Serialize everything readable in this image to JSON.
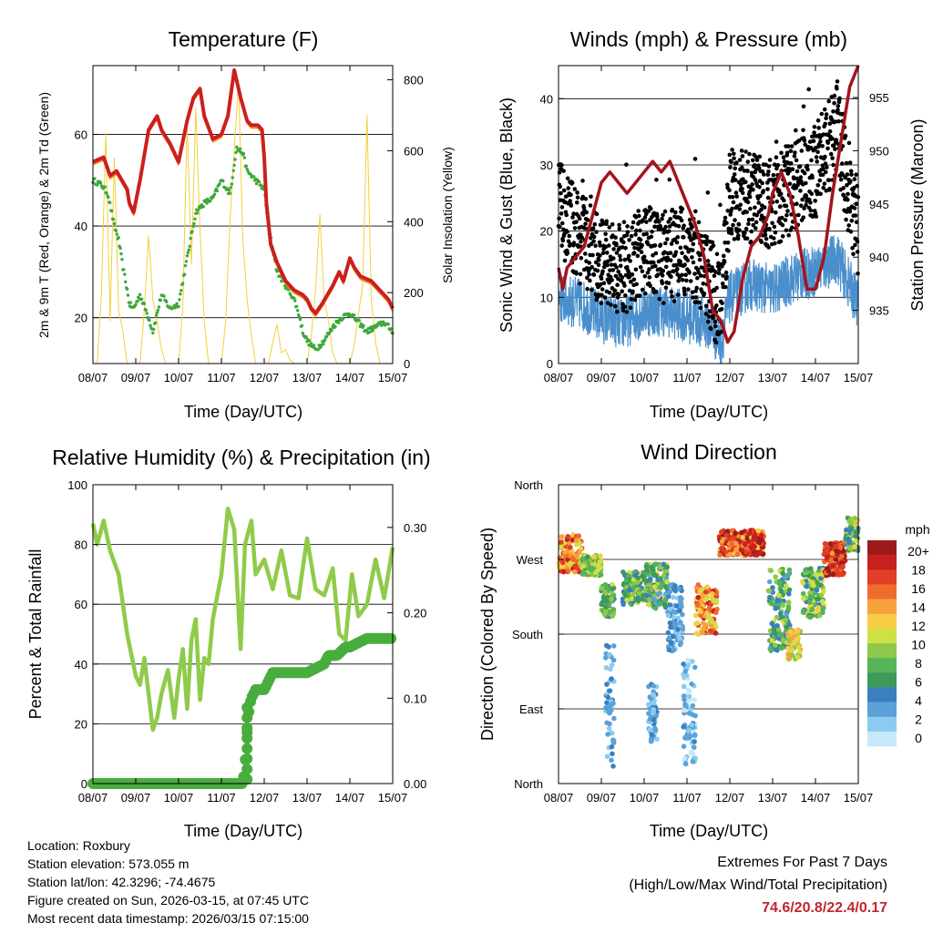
{
  "panels": {
    "temperature": {
      "title": "Temperature (F)",
      "ylabel_left": "2m & 9m T (Red, Orange) & 2m Td (Green)",
      "ylabel_right": "Solar Insolation (Yellow)",
      "xlabel": "Time (Day/UTC)"
    },
    "winds": {
      "title": "Winds (mph) & Pressure (mb)",
      "ylabel_left": "Sonic Wind & Gust (Blue, Black)",
      "ylabel_right": "Station Pressure (Maroon)",
      "xlabel": "Time (Day/UTC)"
    },
    "humidity": {
      "title": "Relative Humidity (%) & Precipitation (in)",
      "ylabel_left": "Percent & Total Rainfall",
      "xlabel": "Time (Day/UTC)"
    },
    "direction": {
      "title": "Wind Direction",
      "ylabel_left": "Direction (Colored By Speed)",
      "xlabel": "Time (Day/UTC)",
      "colorbar_title": "mph"
    }
  },
  "info": {
    "location": "Location: Roxbury",
    "elevation": "Station elevation: 573.055 m",
    "latlon": "Station lat/lon: 42.3296; -74.4675",
    "created": "Figure created on Sun, 2026-03-15, at 07:45 UTC",
    "recent": "Most recent data timestamp: 2026/03/15 07:15:00"
  },
  "extremes": {
    "heading": "Extremes For Past 7 Days",
    "subheading": "(High/Low/Max Wind/Total Precipitation)",
    "values": "74.6/20.8/22.4/0.17"
  },
  "colors": {
    "temp_2m": "#cc1f1f",
    "temp_9m": "#f08a24",
    "dewpoint": "#3ea83a",
    "solar": "#f2cf3b",
    "wind": "#4a8fcc",
    "gust": "#000000",
    "pressure": "#a3141c",
    "rh": "#8fcb4a",
    "precip": "#49ad3e",
    "colorbar": [
      "#c6e9fa",
      "#8ccaef",
      "#5aa2d8",
      "#3b7fbf",
      "#3e9a5a",
      "#55b45a",
      "#8fc84a",
      "#cfe044",
      "#f7cd46",
      "#f7a23c",
      "#ef6d2c",
      "#e03e26",
      "#c7201f",
      "#9e1a1a"
    ]
  },
  "chart_data": [
    {
      "type": "line",
      "title": "Temperature (F)",
      "x": [
        "08/07",
        "09/07",
        "10/07",
        "11/07",
        "12/07",
        "13/07",
        "14/07",
        "15/07"
      ],
      "xlabel": "Time (Day/UTC)",
      "ylim": [
        10,
        75
      ],
      "yticks": [
        20,
        40,
        60
      ],
      "y2lim": [
        0,
        840
      ],
      "y2ticks": [
        0,
        200,
        400,
        600,
        800
      ],
      "series": [
        {
          "name": "2m T",
          "x": [
            0,
            0.25,
            0.4,
            0.55,
            0.8,
            0.85,
            0.95,
            1.1,
            1.3,
            1.5,
            1.6,
            1.8,
            2.0,
            2.2,
            2.35,
            2.5,
            2.6,
            2.8,
            3.0,
            3.15,
            3.3,
            3.45,
            3.6,
            3.7,
            3.85,
            3.95,
            4.0,
            4.05,
            4.15,
            4.3,
            4.5,
            4.7,
            4.9,
            5.0,
            5.1,
            5.2,
            5.35,
            5.6,
            5.75,
            5.85,
            6.0,
            6.1,
            6.25,
            6.5,
            6.7,
            6.8,
            6.9,
            7.0
          ],
          "values": [
            54,
            55,
            51,
            52,
            48,
            45,
            43,
            50,
            61,
            64,
            61,
            58,
            54,
            63,
            68,
            70,
            64,
            59,
            60,
            64,
            74,
            68,
            63,
            62,
            62,
            61,
            55,
            45,
            36,
            32,
            28,
            26,
            25,
            24,
            22,
            21,
            23,
            27,
            30,
            28,
            33,
            31,
            29,
            28,
            26,
            25,
            24,
            22
          ]
        },
        {
          "name": "2m Td",
          "x": [
            0,
            0.2,
            0.35,
            0.5,
            0.6,
            0.7,
            0.8,
            0.85,
            0.95,
            1.1,
            1.3,
            1.4,
            1.5,
            1.6,
            1.8,
            2.0,
            2.2,
            2.4,
            2.6,
            2.8,
            3.0,
            3.2,
            3.35,
            3.5,
            3.6,
            3.8,
            4.0,
            4.1,
            4.3,
            4.5,
            4.7,
            4.8,
            4.9,
            5.0,
            5.2,
            5.4,
            5.6,
            5.8,
            6.0,
            6.2,
            6.4,
            6.6,
            6.8,
            7.0
          ],
          "values": [
            50,
            49,
            47,
            40,
            37,
            31,
            26,
            23,
            22,
            25,
            20,
            17,
            21,
            25,
            22,
            23,
            33,
            43,
            45,
            46,
            50,
            47,
            57,
            56,
            52,
            50,
            48,
            40,
            30,
            27,
            24,
            21,
            17,
            15,
            13,
            15,
            18,
            20,
            21,
            19,
            17,
            18,
            19,
            17
          ]
        },
        {
          "name": "Solar",
          "axis": "right",
          "x": [
            0,
            0.1,
            0.2,
            0.3,
            0.4,
            0.5,
            0.6,
            0.7,
            0.8,
            1.0,
            1.1,
            1.2,
            1.3,
            1.4,
            1.5,
            1.6,
            1.7,
            1.8,
            2.0,
            2.1,
            2.2,
            2.3,
            2.4,
            2.5,
            2.6,
            2.7,
            2.8,
            3.0,
            3.1,
            3.2,
            3.3,
            3.4,
            3.5,
            3.6,
            3.7,
            3.8,
            4.0,
            4.1,
            4.2,
            4.3,
            4.4,
            4.5,
            4.6,
            4.7,
            4.8,
            5.0,
            5.1,
            5.2,
            5.3,
            5.4,
            5.5,
            5.6,
            5.7,
            5.8,
            6.0,
            6.1,
            6.2,
            6.3,
            6.4,
            6.5,
            6.6,
            6.7,
            6.8,
            7.0
          ],
          "values": [
            0,
            0,
            200,
            650,
            120,
            580,
            150,
            90,
            0,
            0,
            0,
            150,
            360,
            180,
            120,
            40,
            0,
            0,
            0,
            160,
            680,
            280,
            720,
            380,
            120,
            0,
            0,
            0,
            120,
            400,
            600,
            800,
            350,
            180,
            80,
            0,
            0,
            0,
            60,
            110,
            30,
            40,
            10,
            0,
            0,
            0,
            80,
            210,
            420,
            180,
            120,
            30,
            0,
            0,
            0,
            50,
            140,
            220,
            700,
            180,
            60,
            0,
            0,
            0
          ]
        }
      ]
    },
    {
      "type": "line",
      "title": "Winds (mph) & Pressure (mb)",
      "x": [
        "08/07",
        "09/07",
        "10/07",
        "11/07",
        "12/07",
        "13/07",
        "14/07",
        "15/07"
      ],
      "xlabel": "Time (Day/UTC)",
      "ylim": [
        0,
        45
      ],
      "yticks": [
        0,
        10,
        20,
        30,
        40
      ],
      "y2lim": [
        930,
        958
      ],
      "y2ticks": [
        935,
        940,
        945,
        950,
        955
      ],
      "series": [
        {
          "name": "Wind",
          "x": [
            0,
            0.5,
            1.0,
            1.5,
            2.0,
            2.5,
            3.0,
            3.5,
            3.8,
            4.0,
            4.5,
            5.0,
            5.5,
            6.0,
            6.5,
            7.0
          ],
          "values": [
            10,
            9,
            7,
            6,
            8,
            8,
            7,
            6,
            3,
            10,
            12,
            11,
            13,
            14,
            16,
            9
          ]
        },
        {
          "name": "Gust",
          "x": [
            0,
            0.5,
            1.0,
            1.5,
            2.0,
            2.5,
            3.0,
            3.5,
            3.8,
            4.0,
            4.5,
            5.0,
            5.5,
            6.0,
            6.5,
            7.0
          ],
          "values": [
            24,
            19,
            15,
            14,
            17,
            16,
            17,
            13,
            8,
            26,
            25,
            24,
            27,
            29,
            35,
            20
          ]
        },
        {
          "name": "Pressure",
          "axis": "right",
          "x": [
            0,
            0.1,
            0.2,
            0.4,
            0.6,
            0.8,
            1.0,
            1.2,
            1.4,
            1.6,
            1.8,
            2.0,
            2.2,
            2.4,
            2.6,
            2.8,
            3.0,
            3.2,
            3.4,
            3.6,
            3.8,
            3.95,
            4.1,
            4.3,
            4.5,
            4.7,
            4.9,
            5.0,
            5.2,
            5.4,
            5.6,
            5.8,
            6.0,
            6.2,
            6.4,
            6.6,
            6.8,
            7.0
          ],
          "values": [
            939,
            937,
            939,
            940,
            941,
            944,
            947,
            948,
            947,
            946,
            947,
            948,
            949,
            948,
            949,
            947,
            945,
            943,
            940,
            935,
            934,
            932,
            933,
            938,
            941,
            942,
            944,
            946,
            948,
            946,
            942,
            937,
            937,
            940,
            946,
            951,
            956,
            958
          ]
        }
      ]
    },
    {
      "type": "line",
      "title": "Relative Humidity (%) & Precipitation (in)",
      "x": [
        "08/07",
        "09/07",
        "10/07",
        "11/07",
        "12/07",
        "13/07",
        "14/07",
        "15/07"
      ],
      "xlabel": "Time (Day/UTC)",
      "ylim": [
        0,
        100
      ],
      "yticks": [
        0,
        20,
        40,
        60,
        80,
        100
      ],
      "y2lim": [
        0,
        0.35
      ],
      "y2ticks": [
        0.0,
        0.1,
        0.2,
        0.3
      ],
      "series": [
        {
          "name": "RH",
          "x": [
            0,
            0.1,
            0.25,
            0.4,
            0.6,
            0.8,
            1.0,
            1.1,
            1.2,
            1.3,
            1.4,
            1.5,
            1.6,
            1.75,
            1.9,
            2.0,
            2.1,
            2.2,
            2.3,
            2.4,
            2.5,
            2.6,
            2.7,
            2.8,
            3.0,
            3.15,
            3.3,
            3.45,
            3.55,
            3.7,
            3.8,
            4.0,
            4.2,
            4.4,
            4.6,
            4.8,
            5.0,
            5.2,
            5.4,
            5.6,
            5.75,
            5.9,
            6.05,
            6.2,
            6.4,
            6.6,
            6.8,
            7.0
          ],
          "values": [
            87,
            80,
            88,
            78,
            70,
            50,
            36,
            33,
            42,
            30,
            18,
            22,
            30,
            38,
            22,
            35,
            45,
            25,
            48,
            55,
            28,
            42,
            40,
            55,
            70,
            92,
            85,
            45,
            80,
            88,
            70,
            75,
            65,
            78,
            63,
            62,
            82,
            65,
            63,
            72,
            50,
            48,
            70,
            56,
            60,
            75,
            62,
            79
          ]
        },
        {
          "name": "Precip",
          "axis": "right",
          "x": [
            0,
            3.5,
            3.55,
            3.6,
            3.65,
            3.7,
            3.8,
            4.0,
            4.2,
            4.5,
            5.0,
            5.4,
            5.5,
            5.7,
            5.9,
            6.0,
            6.4,
            6.8,
            7.0
          ],
          "values": [
            0,
            0,
            0.02,
            0.06,
            0.09,
            0.1,
            0.11,
            0.11,
            0.13,
            0.13,
            0.13,
            0.14,
            0.15,
            0.15,
            0.16,
            0.16,
            0.17,
            0.17,
            0.17
          ]
        }
      ]
    },
    {
      "type": "scatter",
      "title": "Wind Direction",
      "x": [
        "08/07",
        "09/07",
        "10/07",
        "11/07",
        "12/07",
        "13/07",
        "14/07",
        "15/07"
      ],
      "xlabel": "Time (Day/UTC)",
      "ylabel": "Direction (Colored By Speed)",
      "yticks": [
        "North",
        "East",
        "South",
        "West",
        "North"
      ],
      "ylim": [
        0,
        360
      ],
      "colorbar": {
        "title": "mph",
        "labels": [
          "20+",
          "18",
          "16",
          "14",
          "12",
          "10",
          "8",
          "6",
          "4",
          "2",
          "0"
        ]
      },
      "clusters": [
        {
          "t": [
            0.0,
            0.55
          ],
          "dir": [
            255,
            300
          ],
          "speed": [
            10,
            18
          ]
        },
        {
          "t": [
            0.55,
            1.0
          ],
          "dir": [
            250,
            275
          ],
          "speed": [
            6,
            12
          ]
        },
        {
          "t": [
            1.0,
            1.3
          ],
          "dir": [
            200,
            240
          ],
          "speed": [
            4,
            10
          ]
        },
        {
          "t": [
            1.1,
            1.3
          ],
          "dir": [
            20,
            170
          ],
          "speed": [
            1,
            5
          ]
        },
        {
          "t": [
            1.5,
            2.0
          ],
          "dir": [
            215,
            255
          ],
          "speed": [
            4,
            11
          ]
        },
        {
          "t": [
            2.05,
            2.55
          ],
          "dir": [
            210,
            265
          ],
          "speed": [
            3,
            12
          ]
        },
        {
          "t": [
            2.1,
            2.3
          ],
          "dir": [
            50,
            120
          ],
          "speed": [
            1,
            4
          ]
        },
        {
          "t": [
            2.55,
            2.9
          ],
          "dir": [
            160,
            240
          ],
          "speed": [
            1,
            5
          ]
        },
        {
          "t": [
            2.9,
            3.2
          ],
          "dir": [
            20,
            150
          ],
          "speed": [
            0,
            4
          ]
        },
        {
          "t": [
            3.2,
            3.7
          ],
          "dir": [
            180,
            240
          ],
          "speed": [
            10,
            18
          ]
        },
        {
          "t": [
            3.75,
            4.8
          ],
          "dir": [
            275,
            305
          ],
          "speed": [
            12,
            20
          ]
        },
        {
          "t": [
            4.9,
            5.4
          ],
          "dir": [
            160,
            260
          ],
          "speed": [
            3,
            10
          ]
        },
        {
          "t": [
            5.35,
            5.65
          ],
          "dir": [
            150,
            185
          ],
          "speed": [
            8,
            14
          ]
        },
        {
          "t": [
            5.7,
            6.2
          ],
          "dir": [
            200,
            260
          ],
          "speed": [
            4,
            12
          ]
        },
        {
          "t": [
            6.2,
            6.7
          ],
          "dir": [
            250,
            290
          ],
          "speed": [
            14,
            20
          ]
        },
        {
          "t": [
            6.7,
            7.0
          ],
          "dir": [
            280,
            320
          ],
          "speed": [
            4,
            12
          ]
        }
      ]
    }
  ]
}
